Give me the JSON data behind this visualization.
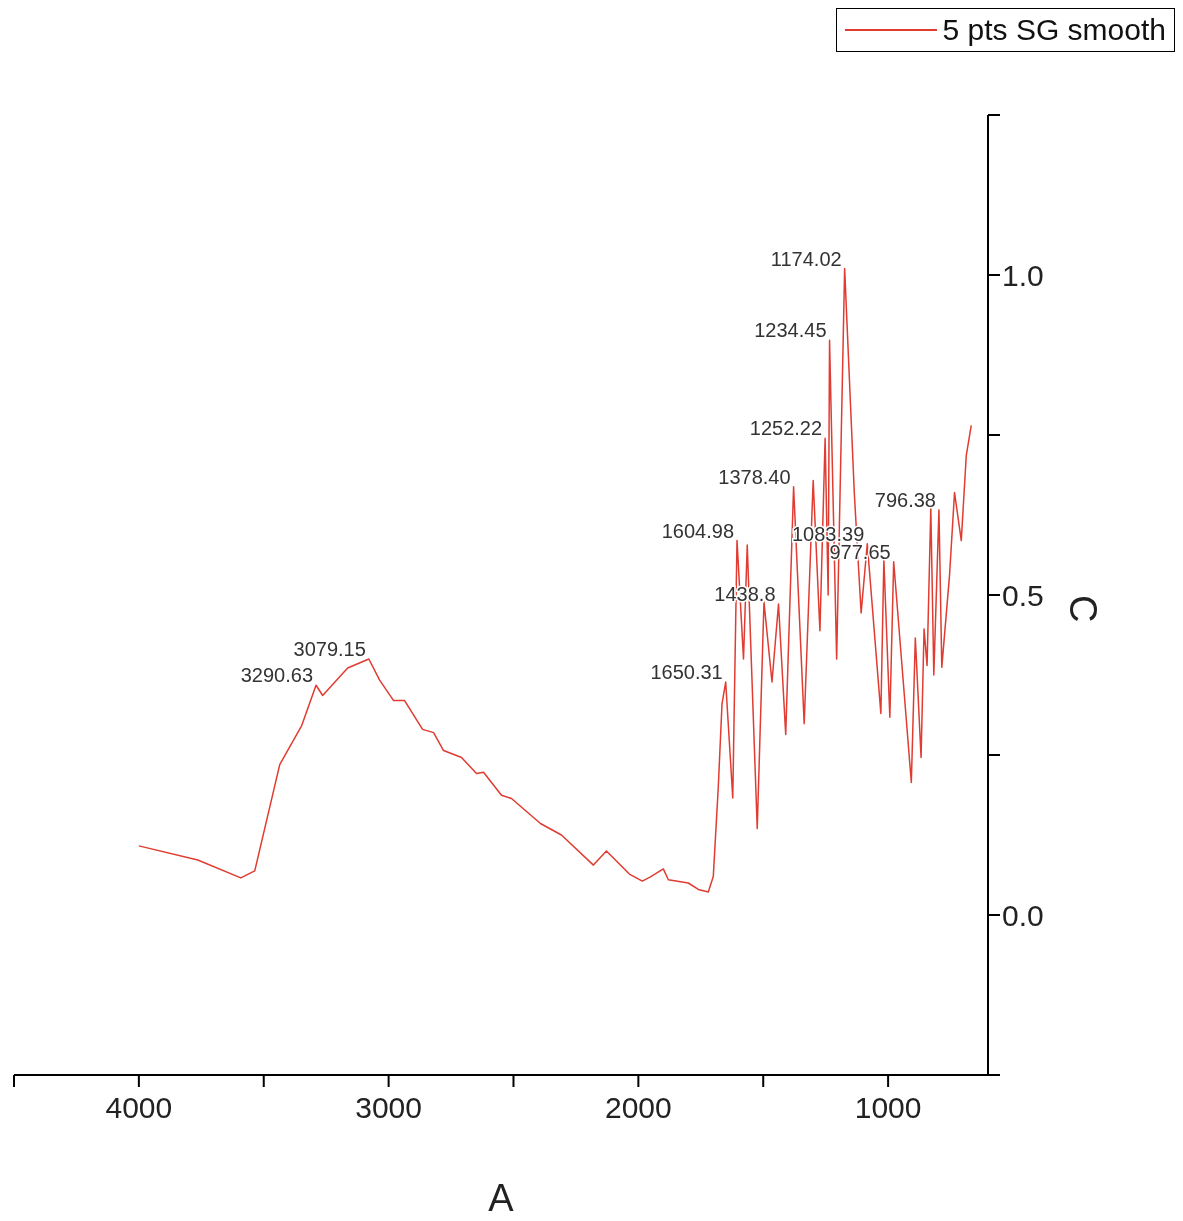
{
  "chart_data": {
    "type": "line",
    "xlabel": "A",
    "ylabel": "C",
    "x": [
      4000,
      3764,
      3592,
      3536,
      3436,
      3348,
      3290.63,
      3264,
      3164,
      3079.15,
      3036,
      2980,
      2936,
      2864,
      2820,
      2780,
      2708,
      2648,
      2620,
      2548,
      2508,
      2392,
      2308,
      2180,
      2128,
      2036,
      1984,
      1950,
      1900,
      1880,
      1800,
      1760,
      1720,
      1700,
      1680,
      1665,
      1650.31,
      1622,
      1604.98,
      1579,
      1564,
      1524,
      1497,
      1465,
      1438.8,
      1410,
      1378.4,
      1336,
      1300,
      1273,
      1252.22,
      1240,
      1234.45,
      1206,
      1174.02,
      1135,
      1108,
      1083.39,
      1029,
      1017,
      993,
      977.65,
      907,
      891,
      868,
      856,
      844,
      829,
      817,
      796.38,
      785,
      754,
      734,
      707,
      687,
      667
    ],
    "series": [
      {
        "name": "5 pts SG smooth",
        "color": "#e03c31",
        "values": [
          0.108,
          0.086,
          0.058,
          0.069,
          0.235,
          0.296,
          0.359,
          0.343,
          0.386,
          0.4,
          0.367,
          0.335,
          0.335,
          0.29,
          0.285,
          0.257,
          0.246,
          0.221,
          0.223,
          0.187,
          0.182,
          0.143,
          0.125,
          0.078,
          0.1,
          0.064,
          0.053,
          0.06,
          0.072,
          0.055,
          0.05,
          0.04,
          0.036,
          0.06,
          0.2,
          0.33,
          0.364,
          0.183,
          0.585,
          0.4,
          0.578,
          0.135,
          0.489,
          0.364,
          0.486,
          0.282,
          0.669,
          0.299,
          0.679,
          0.444,
          0.745,
          0.5,
          0.898,
          0.4,
          1.01,
          0.657,
          0.472,
          0.58,
          0.315,
          0.555,
          0.309,
          0.552,
          0.207,
          0.433,
          0.246,
          0.447,
          0.39,
          0.636,
          0.375,
          0.633,
          0.387,
          0.531,
          0.66,
          0.585,
          0.718,
          0.765
        ]
      }
    ],
    "annotations": [
      {
        "text": "3290.63",
        "x": 3290.63,
        "y": 0.359
      },
      {
        "text": "3079.15",
        "x": 3079.15,
        "y": 0.4
      },
      {
        "text": "1650.31",
        "x": 1650.31,
        "y": 0.364
      },
      {
        "text": "1604.98",
        "x": 1604.98,
        "y": 0.585
      },
      {
        "text": "1438.8",
        "x": 1438.8,
        "y": 0.486
      },
      {
        "text": "1378.40",
        "x": 1378.4,
        "y": 0.669
      },
      {
        "text": "1252.22",
        "x": 1252.22,
        "y": 0.745
      },
      {
        "text": "1234.45",
        "x": 1234.45,
        "y": 0.898
      },
      {
        "text": "1174.02",
        "x": 1174.02,
        "y": 1.01
      },
      {
        "text": "1083.39",
        "x": 1083.39,
        "y": 0.58
      },
      {
        "text": "977.65",
        "x": 977.65,
        "y": 0.552
      },
      {
        "text": "796.38",
        "x": 796.38,
        "y": 0.633
      }
    ],
    "xlim": [
      4500,
      600
    ],
    "xticks": [
      {
        "value": 4500,
        "label": null
      },
      4000,
      {
        "value": 3500,
        "label": null
      },
      3000,
      {
        "value": 2500,
        "label": null
      },
      2000,
      {
        "value": 1500,
        "label": null
      },
      1000
    ],
    "ylim": [
      -0.25,
      1.25
    ],
    "yticks": [
      {
        "value": -0.25,
        "label": null
      },
      {
        "value": 0,
        "label": "0.0"
      },
      {
        "value": 0.25,
        "label": null
      },
      0.5,
      {
        "value": 0.75,
        "label": null
      },
      {
        "value": 1,
        "label": "1.0"
      },
      {
        "value": 1.25,
        "label": null
      }
    ],
    "grid": false,
    "legend": "top right",
    "marker": "none",
    "line_style": "solid"
  }
}
